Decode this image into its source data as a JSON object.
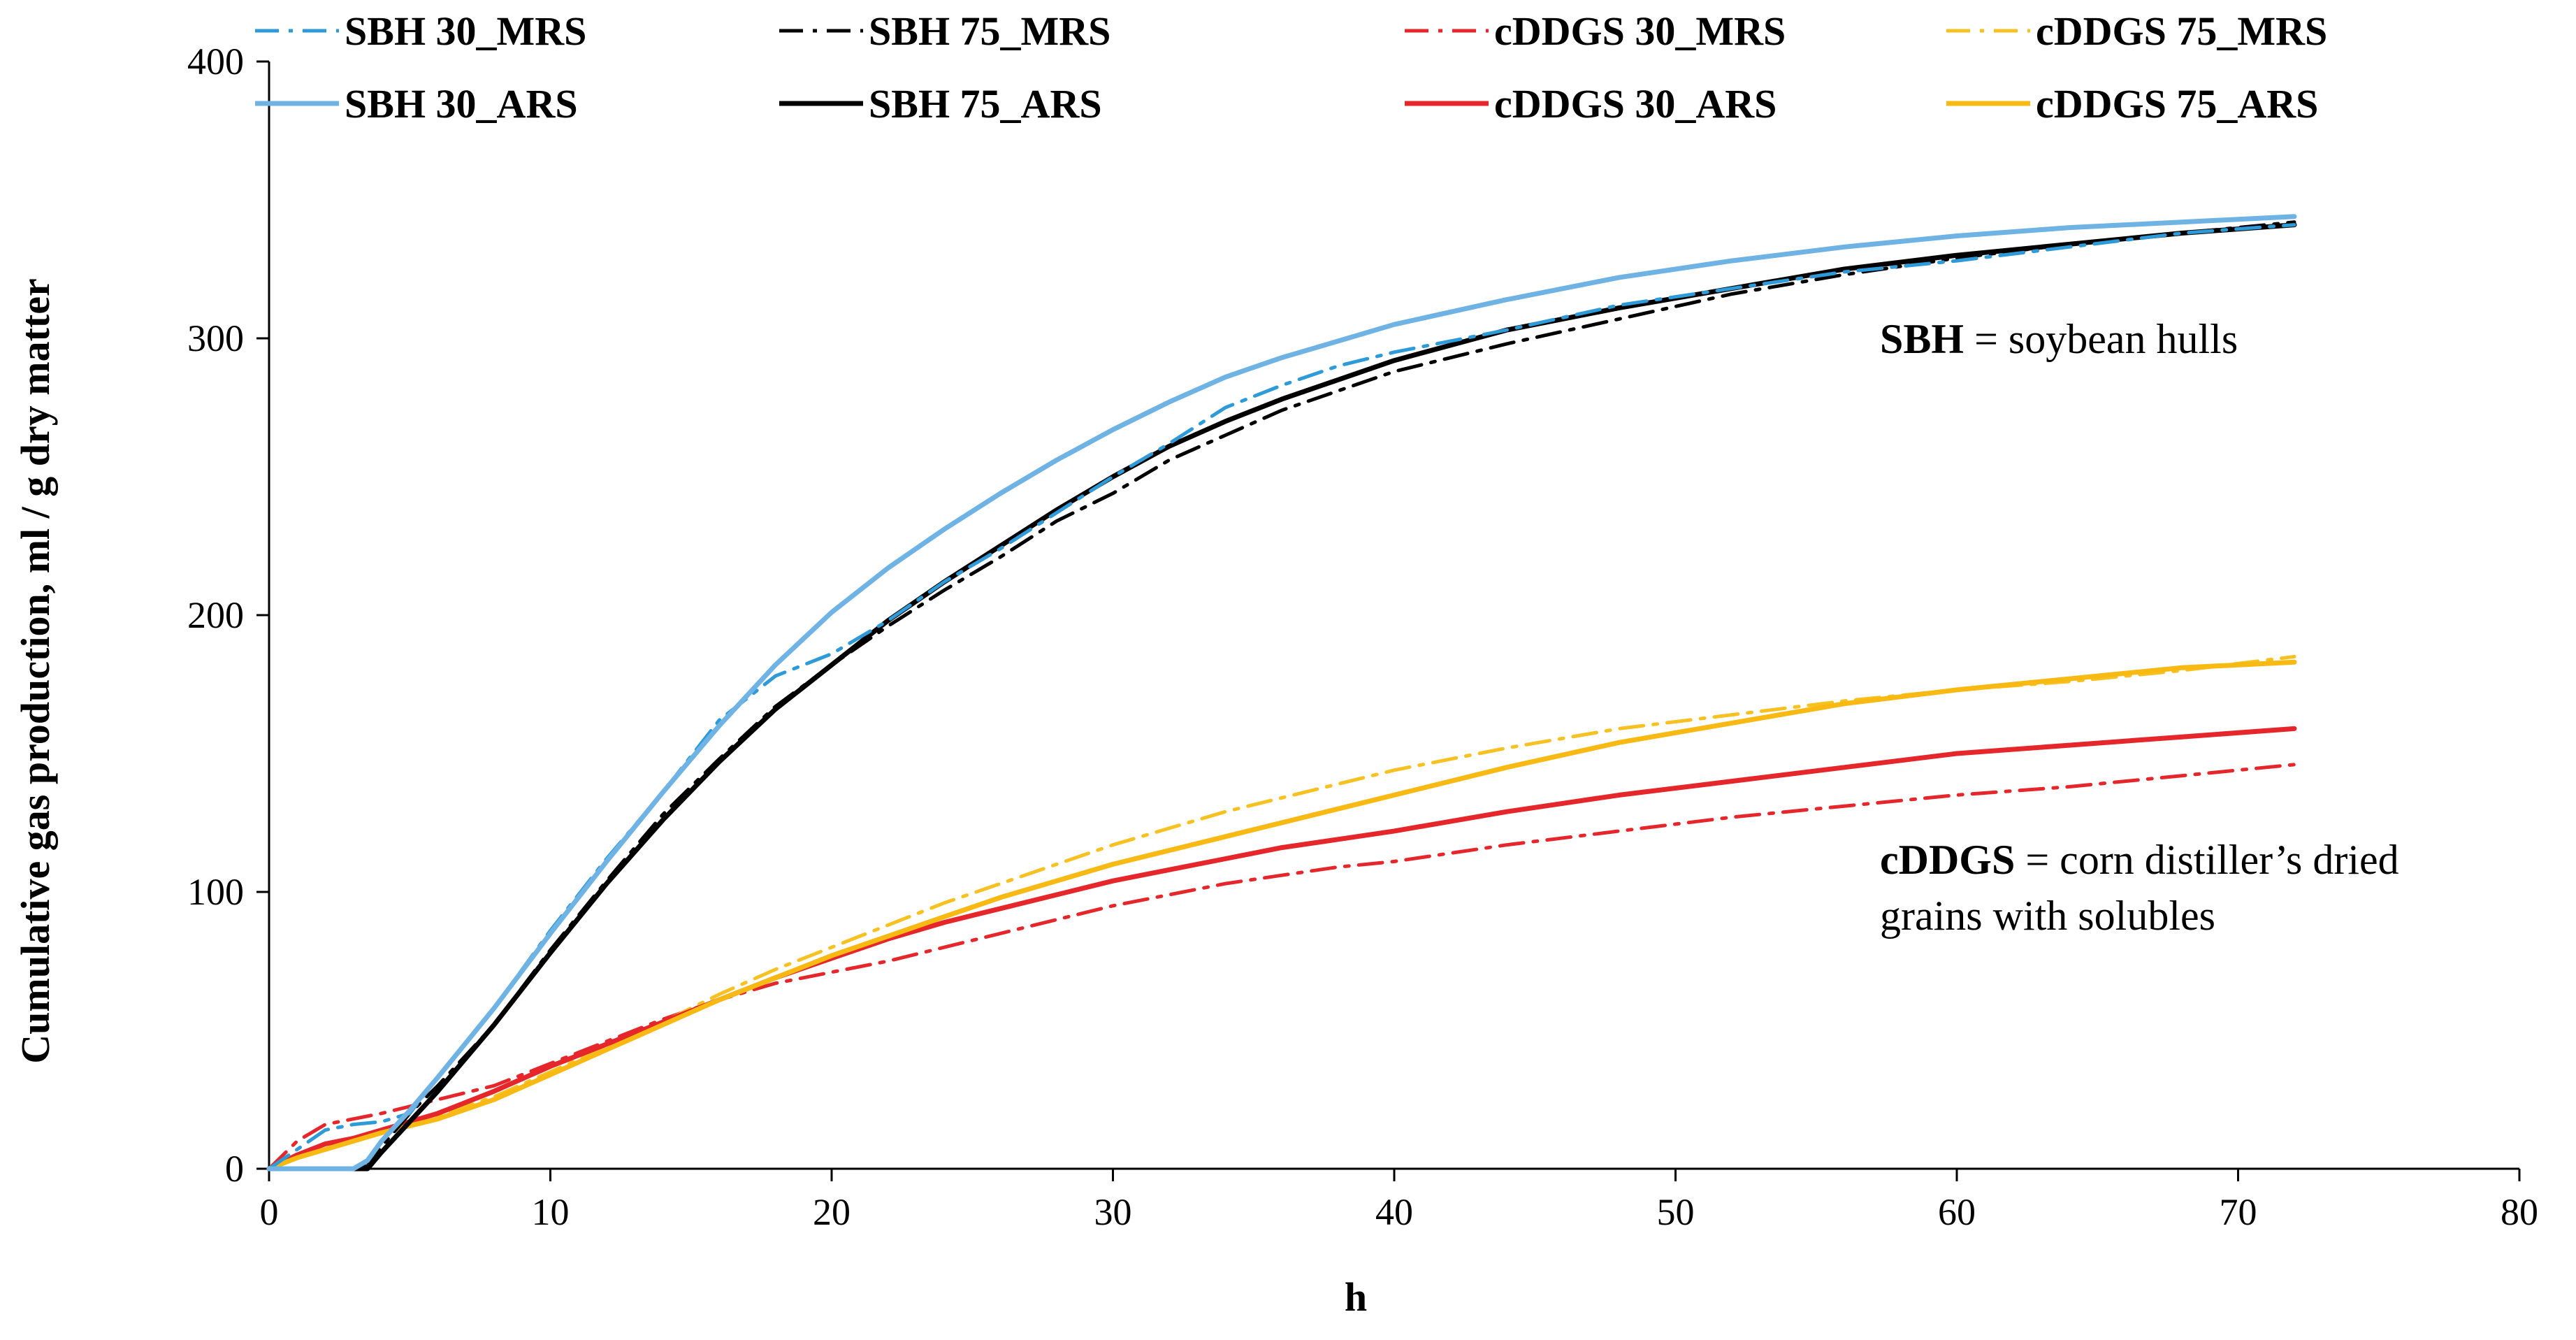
{
  "chart_data": {
    "type": "line",
    "title": "",
    "xlabel": "h",
    "ylabel": "Cumulative gas production, ml / g dry matter",
    "xlim": [
      0,
      80
    ],
    "ylim": [
      0,
      400
    ],
    "xticks": [
      0,
      10,
      20,
      30,
      40,
      50,
      60,
      70,
      80
    ],
    "yticks": [
      0,
      100,
      200,
      300,
      400
    ],
    "legend_position": "top",
    "annotations": [
      {
        "bold": "SBH",
        "rest": " = soybean hulls"
      },
      {
        "bold": "cDDGS",
        "rest": " = corn distiller’s dried",
        "line2": "grains with solubles"
      }
    ],
    "series": [
      {
        "name": "SBH 30_MRS",
        "color": "#2e9ad8",
        "dash": "dashdot",
        "points": [
          [
            0,
            0
          ],
          [
            1,
            7
          ],
          [
            2,
            14
          ],
          [
            3,
            16
          ],
          [
            4,
            17
          ],
          [
            5,
            20
          ],
          [
            6,
            33
          ],
          [
            8,
            58
          ],
          [
            10,
            86
          ],
          [
            12,
            112
          ],
          [
            14,
            136
          ],
          [
            16,
            162
          ],
          [
            18,
            178
          ],
          [
            20,
            186
          ],
          [
            22,
            198
          ],
          [
            24,
            212
          ],
          [
            26,
            224
          ],
          [
            28,
            237
          ],
          [
            30,
            250
          ],
          [
            32,
            262
          ],
          [
            34,
            275
          ],
          [
            36,
            283
          ],
          [
            38,
            290
          ],
          [
            40,
            295
          ],
          [
            44,
            303
          ],
          [
            48,
            312
          ],
          [
            52,
            318
          ],
          [
            56,
            324
          ],
          [
            60,
            328
          ],
          [
            64,
            333
          ],
          [
            68,
            338
          ],
          [
            72,
            341
          ]
        ]
      },
      {
        "name": "SBH 75_MRS",
        "color": "#000000",
        "dash": "dashdot",
        "points": [
          [
            0,
            0
          ],
          [
            1,
            0
          ],
          [
            2,
            0
          ],
          [
            3,
            0
          ],
          [
            3.5,
            1
          ],
          [
            4,
            8
          ],
          [
            5,
            20
          ],
          [
            6,
            30
          ],
          [
            8,
            52
          ],
          [
            10,
            79
          ],
          [
            12,
            104
          ],
          [
            14,
            128
          ],
          [
            16,
            148
          ],
          [
            18,
            167
          ],
          [
            20,
            182
          ],
          [
            22,
            196
          ],
          [
            24,
            209
          ],
          [
            26,
            221
          ],
          [
            28,
            234
          ],
          [
            30,
            244
          ],
          [
            32,
            256
          ],
          [
            34,
            265
          ],
          [
            36,
            274
          ],
          [
            38,
            281
          ],
          [
            40,
            288
          ],
          [
            44,
            298
          ],
          [
            48,
            307
          ],
          [
            52,
            316
          ],
          [
            56,
            323
          ],
          [
            60,
            329
          ],
          [
            64,
            334
          ],
          [
            68,
            338
          ],
          [
            72,
            342
          ]
        ]
      },
      {
        "name": "cDDGS 30_MRS",
        "color": "#e5262b",
        "dash": "dashdot",
        "points": [
          [
            0,
            0
          ],
          [
            1,
            10
          ],
          [
            2,
            16
          ],
          [
            3,
            18
          ],
          [
            4,
            20
          ],
          [
            6,
            25
          ],
          [
            8,
            30
          ],
          [
            10,
            38
          ],
          [
            12,
            46
          ],
          [
            14,
            54
          ],
          [
            16,
            61
          ],
          [
            18,
            67
          ],
          [
            20,
            71
          ],
          [
            22,
            75
          ],
          [
            24,
            80
          ],
          [
            26,
            85
          ],
          [
            28,
            90
          ],
          [
            30,
            95
          ],
          [
            32,
            99
          ],
          [
            34,
            103
          ],
          [
            36,
            106
          ],
          [
            38,
            109
          ],
          [
            40,
            111
          ],
          [
            44,
            117
          ],
          [
            48,
            122
          ],
          [
            52,
            127
          ],
          [
            56,
            131
          ],
          [
            60,
            135
          ],
          [
            64,
            138
          ],
          [
            68,
            142
          ],
          [
            72,
            146
          ]
        ]
      },
      {
        "name": "cDDGS 75_MRS",
        "color": "#f7c221",
        "dash": "dashdot",
        "points": [
          [
            0,
            0
          ],
          [
            1,
            4
          ],
          [
            2,
            7
          ],
          [
            3,
            10
          ],
          [
            4,
            13
          ],
          [
            6,
            19
          ],
          [
            8,
            26
          ],
          [
            10,
            35
          ],
          [
            12,
            44
          ],
          [
            14,
            53
          ],
          [
            16,
            63
          ],
          [
            18,
            72
          ],
          [
            20,
            80
          ],
          [
            22,
            88
          ],
          [
            24,
            96
          ],
          [
            26,
            103
          ],
          [
            28,
            110
          ],
          [
            30,
            117
          ],
          [
            32,
            123
          ],
          [
            34,
            129
          ],
          [
            36,
            134
          ],
          [
            38,
            139
          ],
          [
            40,
            144
          ],
          [
            44,
            152
          ],
          [
            48,
            159
          ],
          [
            52,
            164
          ],
          [
            56,
            169
          ],
          [
            60,
            173
          ],
          [
            64,
            176
          ],
          [
            68,
            180
          ],
          [
            72,
            185
          ]
        ]
      },
      {
        "name": "SBH 30_ARS",
        "color": "#6fb3e5",
        "dash": "solid",
        "points": [
          [
            0,
            0
          ],
          [
            3,
            0
          ],
          [
            3.5,
            3
          ],
          [
            4,
            10
          ],
          [
            5,
            21
          ],
          [
            6,
            33
          ],
          [
            8,
            58
          ],
          [
            10,
            85
          ],
          [
            12,
            111
          ],
          [
            14,
            136
          ],
          [
            16,
            160
          ],
          [
            18,
            182
          ],
          [
            20,
            201
          ],
          [
            22,
            217
          ],
          [
            24,
            231
          ],
          [
            26,
            244
          ],
          [
            28,
            256
          ],
          [
            30,
            267
          ],
          [
            32,
            277
          ],
          [
            34,
            286
          ],
          [
            36,
            293
          ],
          [
            38,
            299
          ],
          [
            40,
            305
          ],
          [
            44,
            314
          ],
          [
            48,
            322
          ],
          [
            52,
            328
          ],
          [
            56,
            333
          ],
          [
            60,
            337
          ],
          [
            64,
            340
          ],
          [
            68,
            342
          ],
          [
            72,
            344
          ]
        ]
      },
      {
        "name": "SBH 75_ARS",
        "color": "#000000",
        "dash": "solid",
        "points": [
          [
            0,
            0
          ],
          [
            3,
            0
          ],
          [
            3.5,
            0
          ],
          [
            4,
            6
          ],
          [
            5,
            17
          ],
          [
            6,
            28
          ],
          [
            8,
            52
          ],
          [
            10,
            78
          ],
          [
            12,
            103
          ],
          [
            14,
            126
          ],
          [
            16,
            147
          ],
          [
            18,
            166
          ],
          [
            20,
            182
          ],
          [
            22,
            198
          ],
          [
            24,
            212
          ],
          [
            26,
            225
          ],
          [
            28,
            238
          ],
          [
            30,
            250
          ],
          [
            32,
            261
          ],
          [
            34,
            270
          ],
          [
            36,
            278
          ],
          [
            38,
            285
          ],
          [
            40,
            292
          ],
          [
            44,
            303
          ],
          [
            48,
            311
          ],
          [
            52,
            318
          ],
          [
            56,
            325
          ],
          [
            60,
            330
          ],
          [
            64,
            334
          ],
          [
            68,
            338
          ],
          [
            72,
            341
          ]
        ]
      },
      {
        "name": "cDDGS 30_ARS",
        "color": "#e5262b",
        "dash": "solid",
        "points": [
          [
            0,
            0
          ],
          [
            1,
            5
          ],
          [
            2,
            9
          ],
          [
            3,
            11
          ],
          [
            4,
            14
          ],
          [
            6,
            20
          ],
          [
            8,
            28
          ],
          [
            10,
            37
          ],
          [
            12,
            45
          ],
          [
            14,
            53
          ],
          [
            16,
            61
          ],
          [
            18,
            69
          ],
          [
            20,
            76
          ],
          [
            22,
            83
          ],
          [
            24,
            89
          ],
          [
            26,
            94
          ],
          [
            28,
            99
          ],
          [
            30,
            104
          ],
          [
            32,
            108
          ],
          [
            34,
            112
          ],
          [
            36,
            116
          ],
          [
            38,
            119
          ],
          [
            40,
            122
          ],
          [
            44,
            129
          ],
          [
            48,
            135
          ],
          [
            52,
            140
          ],
          [
            56,
            145
          ],
          [
            60,
            150
          ],
          [
            64,
            153
          ],
          [
            68,
            156
          ],
          [
            72,
            159
          ]
        ]
      },
      {
        "name": "cDDGS 75_ARS",
        "color": "#f7b912",
        "dash": "solid",
        "points": [
          [
            0,
            0
          ],
          [
            1,
            4
          ],
          [
            2,
            7
          ],
          [
            3,
            10
          ],
          [
            4,
            13
          ],
          [
            6,
            18
          ],
          [
            8,
            25
          ],
          [
            10,
            34
          ],
          [
            12,
            43
          ],
          [
            14,
            52
          ],
          [
            16,
            61
          ],
          [
            18,
            69
          ],
          [
            20,
            77
          ],
          [
            22,
            84
          ],
          [
            24,
            91
          ],
          [
            26,
            98
          ],
          [
            28,
            104
          ],
          [
            30,
            110
          ],
          [
            32,
            115
          ],
          [
            34,
            120
          ],
          [
            36,
            125
          ],
          [
            38,
            130
          ],
          [
            40,
            135
          ],
          [
            44,
            145
          ],
          [
            48,
            154
          ],
          [
            52,
            161
          ],
          [
            56,
            168
          ],
          [
            60,
            173
          ],
          [
            64,
            177
          ],
          [
            68,
            181
          ],
          [
            72,
            183
          ]
        ]
      }
    ]
  }
}
